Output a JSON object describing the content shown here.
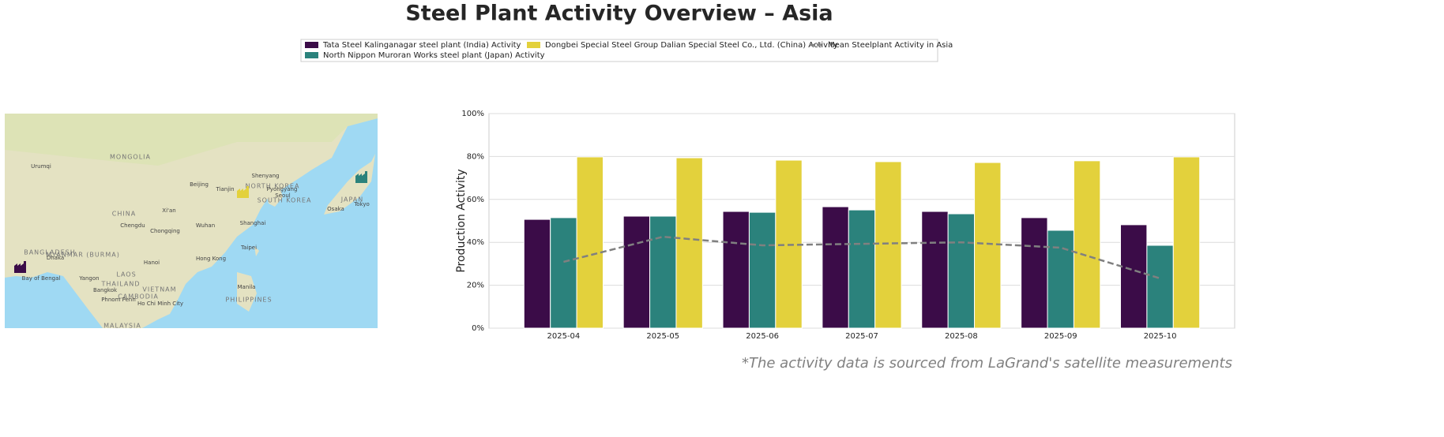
{
  "chart_data": {
    "type": "bar",
    "title": "Steel Plant Activity Overview – Asia",
    "ylabel": "Production Activity",
    "footnote": "*The activity data is sourced from LaGrand's satellite measurements",
    "categories": [
      "2025-04",
      "2025-05",
      "2025-06",
      "2025-07",
      "2025-08",
      "2025-09",
      "2025-10"
    ],
    "series": [
      {
        "name": "Tata Steel Kalinganagar steel plant (India) Activity",
        "color": "#3b0c48",
        "values": [
          50.7,
          52.2,
          54.4,
          56.6,
          54.4,
          51.5,
          48.2
        ]
      },
      {
        "name": "North Nippon Muroran Works steel plant (Japan) Activity",
        "color": "#2b827c",
        "values": [
          51.5,
          52.2,
          54.0,
          55.1,
          53.3,
          45.6,
          38.6
        ]
      },
      {
        "name": "Dongbei Special Steel Group Dalian Special Steel Co., Ltd. (China) Activity",
        "color": "#e3d13c",
        "values": [
          79.8,
          79.4,
          78.3,
          77.6,
          77.2,
          78.0,
          79.8
        ]
      },
      {
        "name": "Mean Steelplant Activity in Asia",
        "color": "#808080",
        "type": "line",
        "linestyle": "dashed",
        "values": [
          30.9,
          42.6,
          38.6,
          39.3,
          40.0,
          37.5,
          23.2
        ]
      }
    ],
    "ylim": [
      0,
      100
    ],
    "yticks": [
      {
        "value": 0,
        "label": "0%"
      },
      {
        "value": 20,
        "label": "20%"
      },
      {
        "value": 40,
        "label": "40%"
      },
      {
        "value": 60,
        "label": "60%"
      },
      {
        "value": 80,
        "label": "80%"
      },
      {
        "value": 100,
        "label": "100%"
      }
    ],
    "grid": true,
    "legend": "top",
    "map_labels": [
      "MONGOLIA",
      "CHINA",
      "Urumqi",
      "Beijing",
      "Tianjin",
      "Shenyang",
      "NORTH KOREA",
      "Pyongyang",
      "Seoul",
      "SOUTH KOREA",
      "JAPAN",
      "Osaka",
      "Tokyo",
      "Xi'an",
      "Chengdu",
      "Chongqing",
      "Wuhan",
      "Shanghai",
      "Taipei",
      "Hong Kong",
      "Hanoi",
      "LAOS",
      "THAILAND",
      "Bangkok",
      "VIETNAM",
      "CAMBODIA",
      "Phnom Penh",
      "Ho Chi Minh City",
      "PHILIPPINES",
      "Manila",
      "MYANMAR (BURMA)",
      "Yangon",
      "BANGLADESH",
      "Dhaka",
      "Bay of Bengal",
      "MALAYSIA"
    ]
  }
}
